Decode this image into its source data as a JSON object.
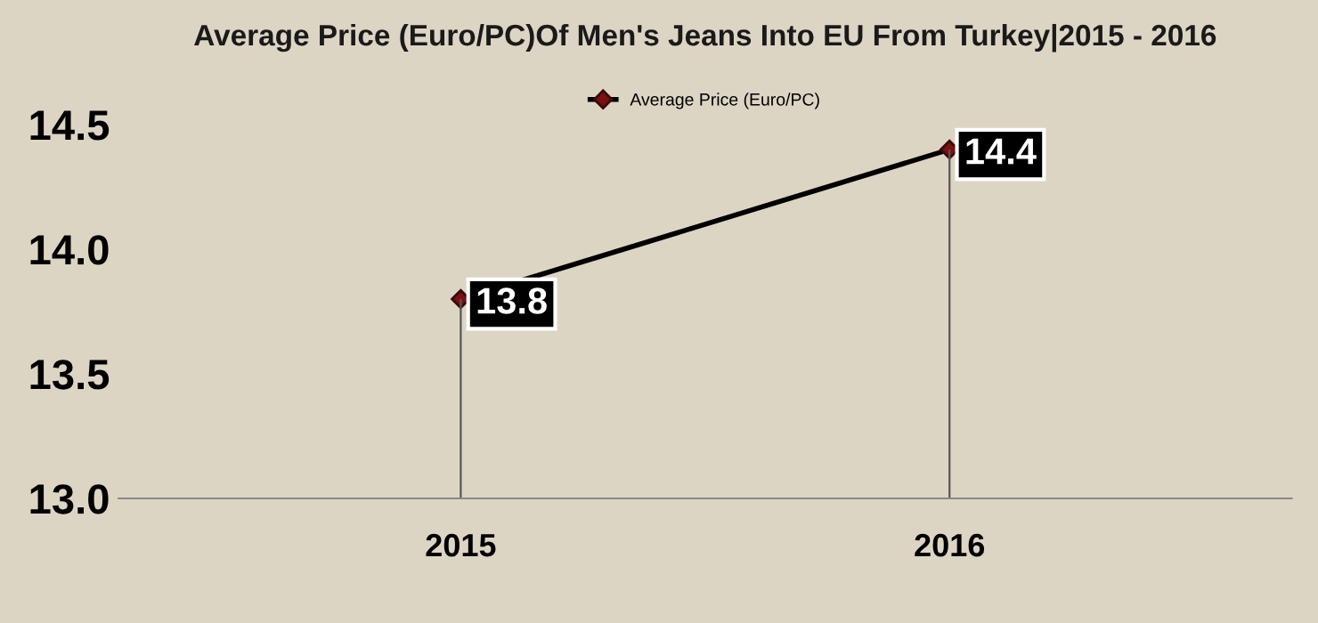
{
  "chart_data": {
    "type": "line",
    "title": "Average Price (Euro/PC)Of Men's Jeans Into EU From Turkey|2015 - 2016",
    "categories": [
      "2015",
      "2016"
    ],
    "series": [
      {
        "name": "Average Price (Euro/PC)",
        "color": "#000000",
        "values": [
          13.8,
          14.4
        ]
      }
    ],
    "marker": "diamond",
    "ylim": [
      13.0,
      14.5
    ],
    "yticks": [
      {
        "value": 13.0,
        "label": "13.0"
      },
      {
        "value": 13.5,
        "label": "13.5"
      },
      {
        "value": 14.0,
        "label": "14.0"
      },
      {
        "value": 14.5,
        "label": "14.5"
      }
    ],
    "data_labels": true,
    "legend": "top",
    "grid": "x"
  }
}
